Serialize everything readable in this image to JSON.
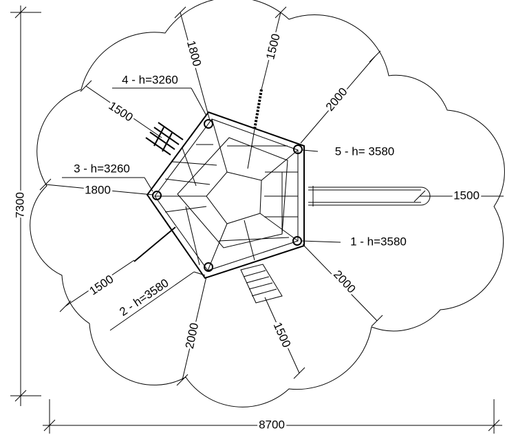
{
  "overall": {
    "height": "7300",
    "width": "8700"
  },
  "dimensions": [
    "1800",
    "1500",
    "2000",
    "1500",
    "1800",
    "1500",
    "1500",
    "2000",
    "1500",
    "2000"
  ],
  "posts": [
    "4 - h=3260",
    "5 - h= 3580",
    "3 - h=3260",
    "1 - h=3580",
    "2 - h=3580"
  ]
}
